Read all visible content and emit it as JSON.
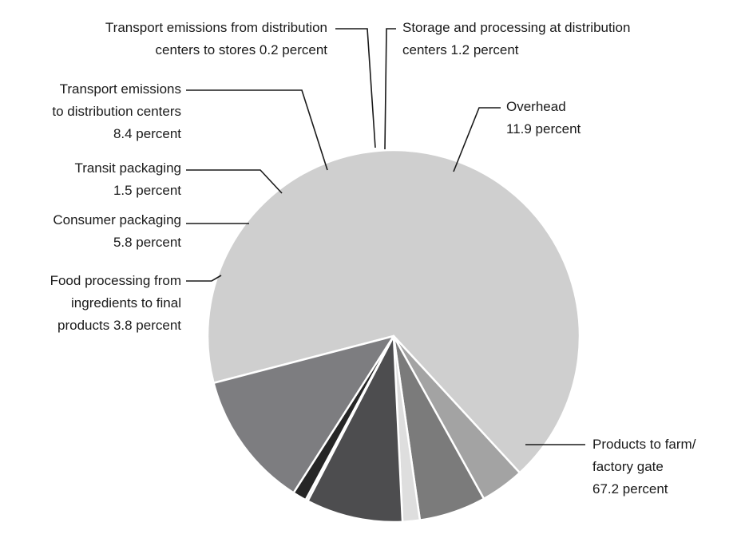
{
  "chart_data": {
    "type": "pie",
    "title": "",
    "slices": [
      {
        "label_lines": [
          "Products to farm/",
          "factory gate",
          "67.2 percent"
        ],
        "value": 67.2,
        "color": "#cfcfcf"
      },
      {
        "label_lines": [
          "Food processing from",
          "ingredients to final",
          "products 3.8 percent"
        ],
        "value": 3.8,
        "color": "#a3a3a3"
      },
      {
        "label_lines": [
          "Consumer packaging",
          "5.8 percent"
        ],
        "value": 5.8,
        "color": "#7b7b7b"
      },
      {
        "label_lines": [
          "Transit packaging",
          "1.5 percent"
        ],
        "value": 1.5,
        "color": "#dedede"
      },
      {
        "label_lines": [
          "Transport emissions",
          "to distribution centers",
          "8.4 percent"
        ],
        "value": 8.4,
        "color": "#4d4d4f"
      },
      {
        "label_lines": [
          "Transport emissions from distribution",
          "centers to stores 0.2 percent"
        ],
        "value": 0.2,
        "color": "#bdbdbd"
      },
      {
        "label_lines": [
          "Storage and processing at distribution",
          "centers 1.2 percent"
        ],
        "value": 1.2,
        "color": "#262626"
      },
      {
        "label_lines": [
          "Overhead",
          "11.9 percent"
        ],
        "value": 11.9,
        "color": "#7d7d80"
      }
    ]
  }
}
